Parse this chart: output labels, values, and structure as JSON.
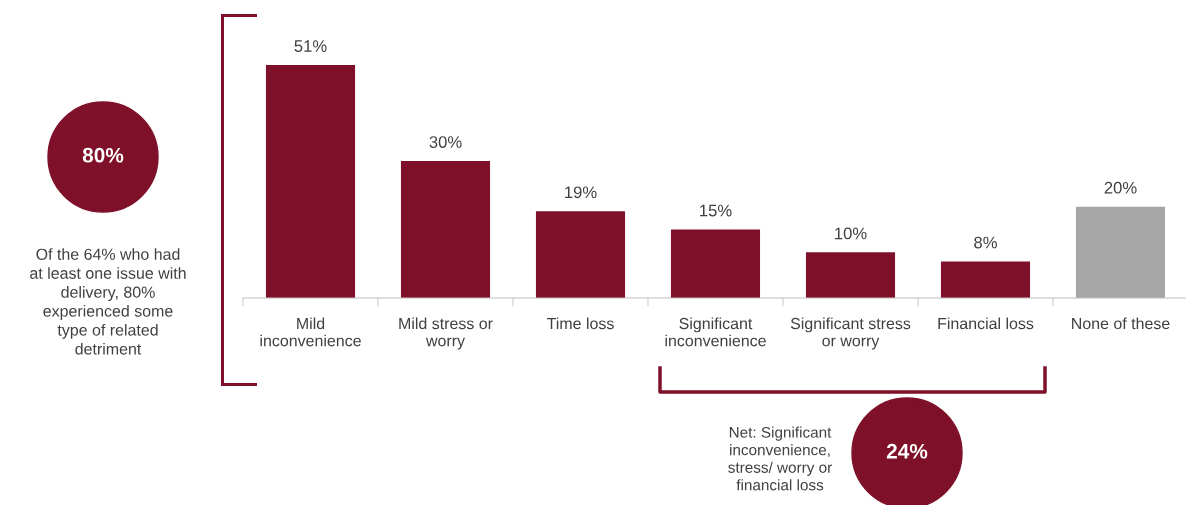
{
  "chart_data": {
    "type": "bar",
    "categories": [
      "Mild\ninconvenience",
      "Mild stress or\nworry",
      "Time loss",
      "Significant\ninconvenience",
      "Significant stress\nor worry",
      "Financial loss",
      "None of these"
    ],
    "values": [
      51,
      30,
      19,
      15,
      10,
      8,
      20
    ],
    "colors": [
      "#7f1029",
      "#7f1029",
      "#7f1029",
      "#7f1029",
      "#7f1029",
      "#7f1029",
      "#a6a6a6"
    ],
    "value_labels": [
      "51%",
      "30%",
      "19%",
      "15%",
      "10%",
      "8%",
      "20%"
    ],
    "annotations": [
      "80%",
      "Of the 64% who had\nat least one issue with\ndelivery, 80%\nexperienced some\ntype of related\ndetriment",
      "Net: Significant\ninconvenience,\nstress/ worry or\nfinancial loss",
      "24%"
    ],
    "grid": false,
    "legend": false
  }
}
